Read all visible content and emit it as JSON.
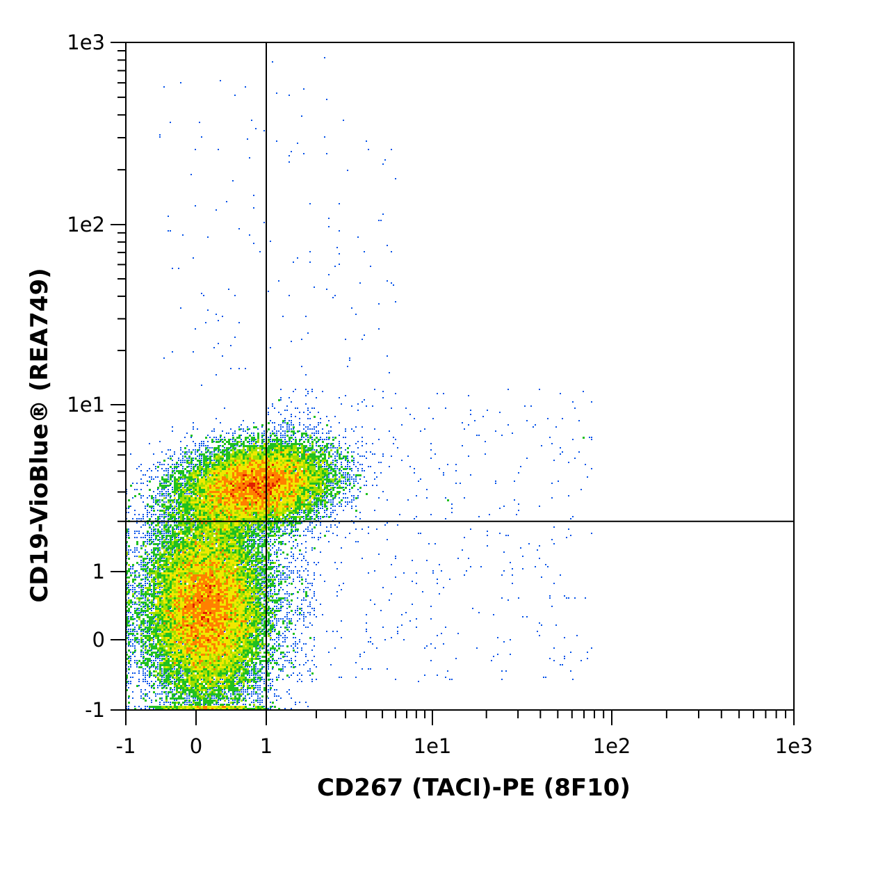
{
  "chart_data": {
    "type": "scatter",
    "subtype": "flow-cytometry density dot plot with quadrant gate",
    "xlabel": "CD267 (TACI)-PE (8F10)",
    "ylabel": "CD19-VioBlue® (REA749)",
    "x_scale": "biexponential (linear near 0, log above 1)",
    "y_scale": "biexponential (linear near 0, log above 1)",
    "xlim": [
      -1,
      1000
    ],
    "ylim": [
      -1,
      1000
    ],
    "x_ticks": [
      {
        "value": -1,
        "label": "-1"
      },
      {
        "value": 0,
        "label": "0"
      },
      {
        "value": 1,
        "label": "1"
      },
      {
        "value": 10,
        "label": "1e1"
      },
      {
        "value": 100,
        "label": "1e2"
      },
      {
        "value": 1000,
        "label": "1e3"
      }
    ],
    "y_ticks": [
      {
        "value": -1,
        "label": "-1"
      },
      {
        "value": 0,
        "label": "0"
      },
      {
        "value": 1,
        "label": "1"
      },
      {
        "value": 10,
        "label": "1e1"
      },
      {
        "value": 100,
        "label": "1e2"
      },
      {
        "value": 1000,
        "label": "1e3"
      }
    ],
    "quadrant_gate": {
      "x": 1,
      "y": 2
    },
    "color_scale": [
      "#0018d0",
      "#0050e8",
      "#00a0b0",
      "#20c020",
      "#a0e000",
      "#f0e800",
      "#ff8000",
      "#e02000"
    ],
    "populations": [
      {
        "name_hidden": true,
        "center_x": 0.2,
        "center_y": 0.5,
        "spread_x": 0.5,
        "spread_y": 1.6,
        "density": "high"
      },
      {
        "name_hidden": true,
        "center_x": 0.9,
        "center_y": 3.3,
        "spread_x": 0.45,
        "spread_y": 0.25,
        "density": "high"
      }
    ],
    "grid": false,
    "legend": "none"
  }
}
